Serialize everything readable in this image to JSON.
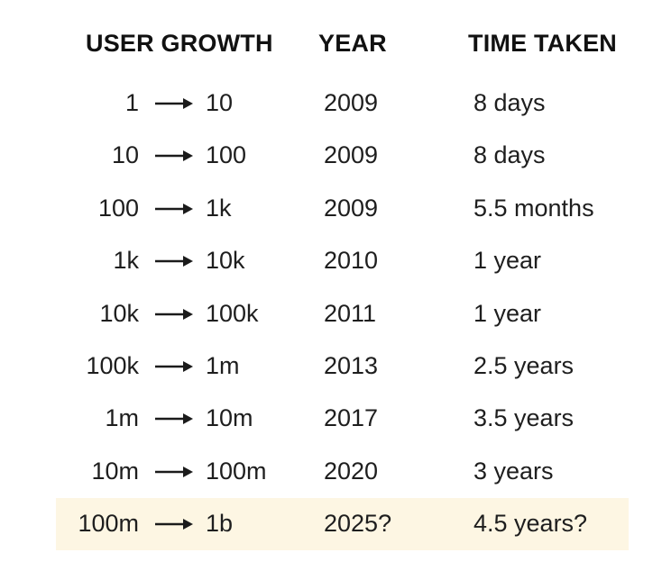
{
  "headers": {
    "growth": "USER GROWTH",
    "year": "YEAR",
    "time": "TIME TAKEN"
  },
  "rows": [
    {
      "from": "1",
      "to": "10",
      "year": "2009",
      "time": "8 days"
    },
    {
      "from": "10",
      "to": "100",
      "year": "2009",
      "time": "8 days"
    },
    {
      "from": "100",
      "to": "1k",
      "year": "2009",
      "time": "5.5 months"
    },
    {
      "from": "1k",
      "to": "10k",
      "year": "2010",
      "time": "1 year"
    },
    {
      "from": "10k",
      "to": "100k",
      "year": "2011",
      "time": "1 year"
    },
    {
      "from": "100k",
      "to": "1m",
      "year": "2013",
      "time": "2.5 years"
    },
    {
      "from": "1m",
      "to": "10m",
      "year": "2017",
      "time": "3.5 years"
    },
    {
      "from": "10m",
      "to": "100m",
      "year": "2020",
      "time": "3 years"
    },
    {
      "from": "100m",
      "to": "1b",
      "year": "2025?",
      "time": "4.5 years?"
    }
  ],
  "highlight_row": 8,
  "colors": {
    "highlight_bg": "#fdf6e3",
    "text": "#1e1e1e"
  },
  "icons": {
    "arrow": "right-arrow-icon"
  }
}
